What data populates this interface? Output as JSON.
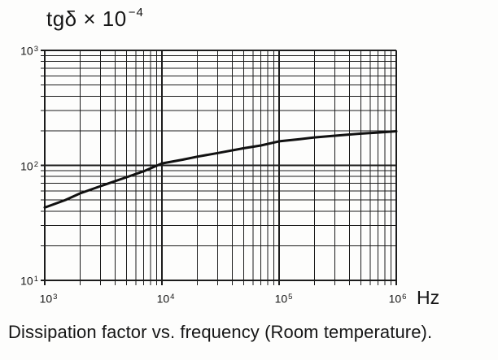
{
  "figure": {
    "title": {
      "base": "tgδ × 10",
      "exponent": "−4"
    },
    "y_ticks": [
      {
        "base": "10",
        "exponent": "3"
      },
      {
        "base": "10",
        "exponent": "2"
      },
      {
        "base": "10",
        "exponent": "1"
      }
    ],
    "x_ticks": [
      {
        "base": "10",
        "exponent": "3"
      },
      {
        "base": "10",
        "exponent": "4"
      },
      {
        "base": "10",
        "exponent": "5"
      },
      {
        "base": "10",
        "exponent": "6"
      }
    ],
    "x_unit": "Hz",
    "caption": "Dissipation factor vs. frequency (Room temperature)."
  },
  "chart_data": {
    "type": "line",
    "title": "tgδ × 10⁻⁴",
    "xlabel": "Hz",
    "ylabel": "tgδ × 10⁻⁴",
    "xscale": "log",
    "yscale": "log",
    "xlim": [
      1000,
      1000000
    ],
    "ylim": [
      10,
      1000
    ],
    "grid": "log minor + major gridlines, both axes",
    "legend": "none",
    "series_name": "dissipation factor at room temperature",
    "x": [
      1000,
      1500,
      2000,
      3000,
      5000,
      7000,
      10000,
      15000,
      20000,
      30000,
      50000,
      70000,
      100000,
      150000,
      200000,
      300000,
      500000,
      700000,
      1000000
    ],
    "y": [
      43,
      50,
      57,
      66,
      79,
      89,
      104,
      112,
      119,
      128,
      141,
      149,
      162,
      169,
      175,
      181,
      189,
      193,
      198
    ]
  }
}
